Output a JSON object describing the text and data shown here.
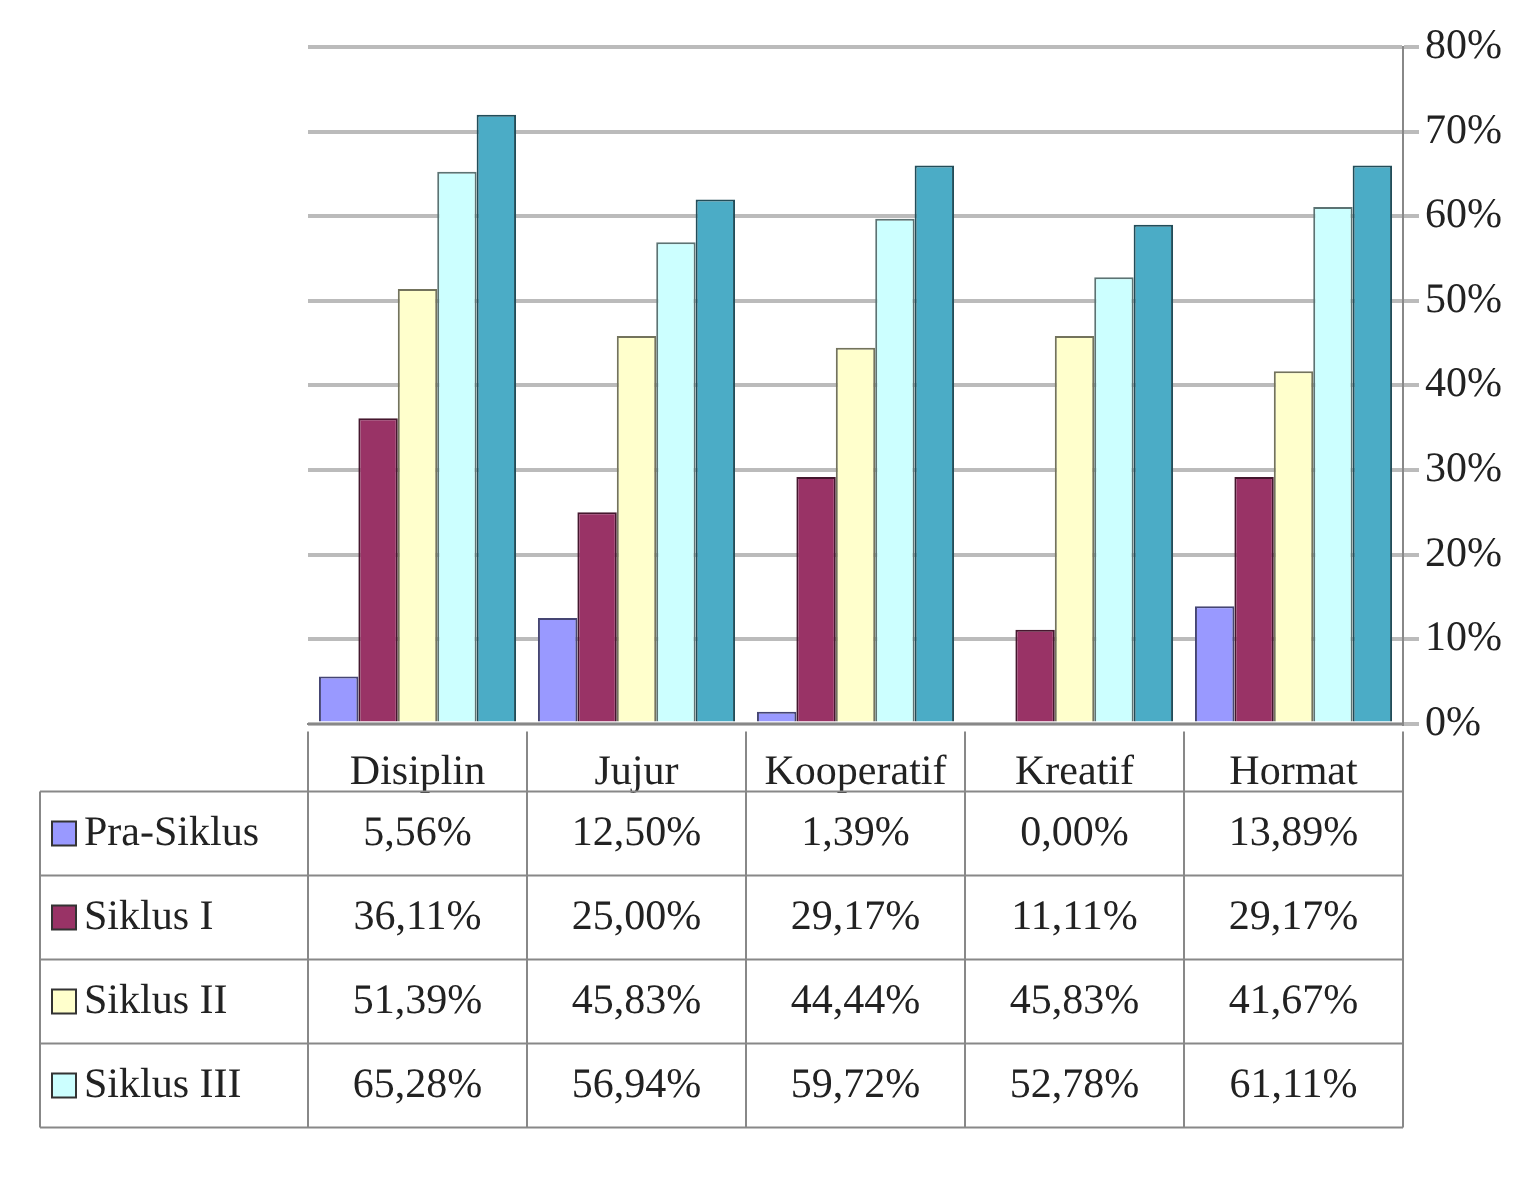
{
  "chart_data": {
    "type": "bar",
    "categories": [
      "Disiplin",
      "Jujur",
      "Kooperatif",
      "Kreatif",
      "Hormat"
    ],
    "series": [
      {
        "name": "Pra-Siklus",
        "color": "#9999ff",
        "values": [
          5.56,
          12.5,
          1.39,
          0,
          13.89
        ],
        "value_labels": [
          "5,56%",
          "12,50%",
          "1,39%",
          "0,00%",
          "13,89%"
        ]
      },
      {
        "name": "Siklus I",
        "color": "#993366",
        "values": [
          36.11,
          25,
          29.17,
          11.11,
          29.17
        ],
        "value_labels": [
          "36,11%",
          "25,00%",
          "29,17%",
          "11,11%",
          "29,17%"
        ]
      },
      {
        "name": "Siklus II",
        "color": "#ffffcc",
        "values": [
          51.39,
          45.83,
          44.44,
          45.83,
          41.67
        ],
        "value_labels": [
          "51,39%",
          "45,83%",
          "44,44%",
          "45,83%",
          "41,67%"
        ]
      },
      {
        "name": "Siklus III",
        "color": "#ccffff",
        "values": [
          65.28,
          56.94,
          59.72,
          52.78,
          61.11
        ],
        "value_labels": [
          "65,28%",
          "56,94%",
          "59,72%",
          "52,78%",
          "61,11%"
        ]
      },
      {
        "color": "#4bacc6",
        "values": [
          72,
          62,
          66,
          59,
          66
        ]
      }
    ],
    "ylim": [
      0,
      80
    ],
    "yticks": [
      {
        "value": 0,
        "label": "0%"
      },
      {
        "value": 10,
        "label": "10%"
      },
      {
        "value": 20,
        "label": "20%"
      },
      {
        "value": 30,
        "label": "30%"
      },
      {
        "value": 40,
        "label": "40%"
      },
      {
        "value": 50,
        "label": "50%"
      },
      {
        "value": 60,
        "label": "60%"
      },
      {
        "value": 70,
        "label": "70%"
      },
      {
        "value": 80,
        "label": "80%"
      }
    ],
    "grid": "y",
    "legend": "bottom"
  }
}
